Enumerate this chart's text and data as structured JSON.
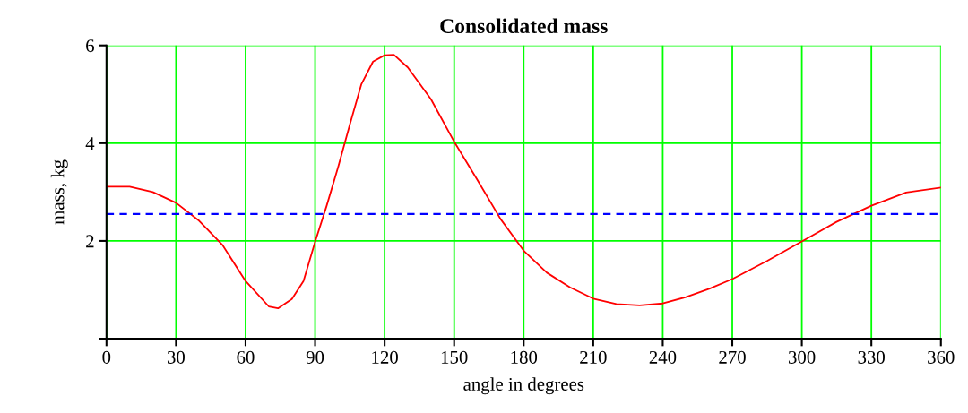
{
  "chart_data": {
    "type": "line",
    "title": "Consolidated mass",
    "xlabel": "angle in degrees",
    "ylabel": "mass, kg",
    "x": [
      0,
      10,
      20,
      30,
      40,
      50,
      60,
      70,
      74,
      80,
      85,
      90,
      95,
      100,
      105,
      110,
      115,
      120,
      124,
      130,
      140,
      150,
      160,
      170,
      180,
      190,
      200,
      210,
      220,
      230,
      240,
      250,
      260,
      270,
      285,
      300,
      315,
      330,
      345,
      360
    ],
    "series": [
      {
        "color": "#ff0000",
        "values": [
          3.11,
          3.11,
          3.0,
          2.78,
          2.41,
          1.92,
          1.18,
          0.66,
          0.62,
          0.81,
          1.18,
          1.98,
          2.72,
          3.52,
          4.38,
          5.21,
          5.67,
          5.8,
          5.81,
          5.55,
          4.9,
          4.03,
          3.25,
          2.45,
          1.8,
          1.35,
          1.05,
          0.82,
          0.71,
          0.68,
          0.72,
          0.85,
          1.02,
          1.22,
          1.59,
          1.99,
          2.39,
          2.72,
          2.99,
          3.09
        ]
      }
    ],
    "ref_lines": [
      {
        "axis": "y",
        "value": 2.55,
        "color": "#0000ff",
        "line_style": "dashed"
      }
    ],
    "xlim": [
      0,
      360
    ],
    "ylim": [
      0,
      6
    ],
    "xticks": [
      0,
      30,
      60,
      90,
      120,
      150,
      180,
      210,
      240,
      270,
      300,
      330,
      360
    ],
    "yticks": [
      {
        "value": 0,
        "label": null
      },
      2,
      4,
      6
    ],
    "grid": true,
    "line_style": "solid",
    "legend": false
  }
}
